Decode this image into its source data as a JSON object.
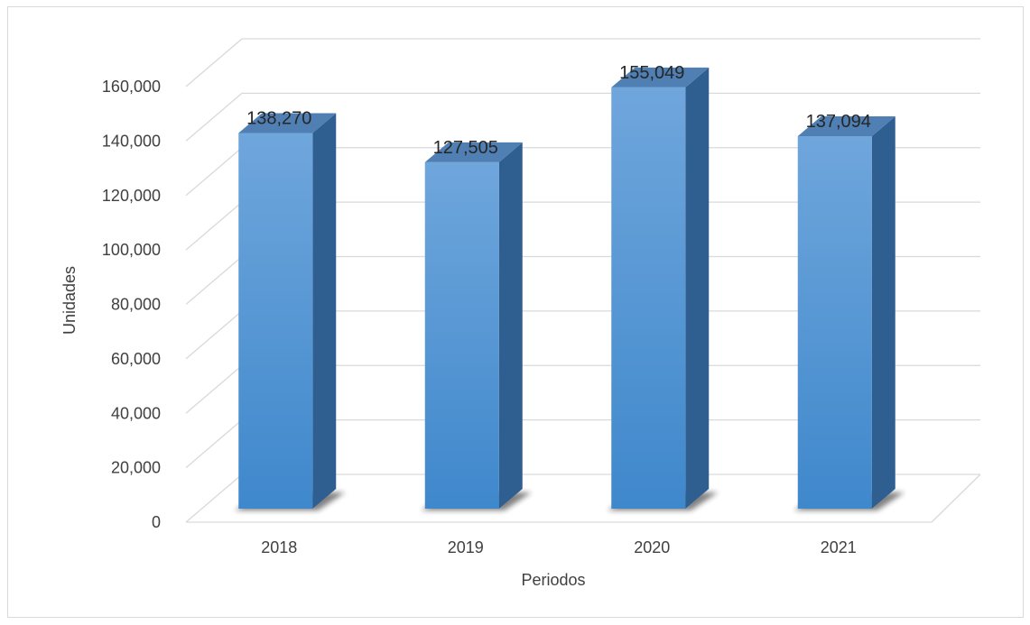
{
  "chart_data": {
    "type": "bar",
    "style": "3d-column",
    "title": "",
    "categories": [
      "2018",
      "2019",
      "2020",
      "2021"
    ],
    "series": [
      {
        "values": [
          138270,
          127505,
          155049,
          137094
        ]
      }
    ],
    "data_labels": [
      "138,270",
      "127,505",
      "155,049",
      "137,094"
    ],
    "xlabel": "Periodos",
    "ylabel": "Unidades",
    "ylim": [
      0,
      160000
    ],
    "yticks": [
      0,
      20000,
      40000,
      60000,
      80000,
      100000,
      120000,
      140000,
      160000
    ],
    "ytick_labels": [
      "0",
      "20,000",
      "40,000",
      "60,000",
      "80,000",
      "100,000",
      "120,000",
      "140,000",
      "160,000"
    ],
    "grid": true,
    "legend": "none",
    "colors": {
      "bar_front_top": "#6fa6dc",
      "bar_front_bottom": "#3f88cc",
      "bar_side": "#2f5f91",
      "bar_top": "#4f7fb3",
      "gridline": "#d9d9d9",
      "text": "#404040"
    }
  }
}
